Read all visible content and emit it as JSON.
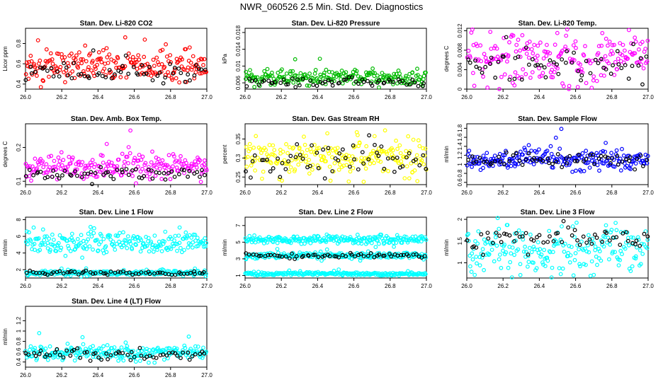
{
  "title": "NWR_060526  2.5 Min. Std. Dev. Diagnostics",
  "chart_data": [
    {
      "type": "scatter",
      "title": "Stan. Dev. Li-820 CO2",
      "ylabel": "Licor ppm",
      "xlim": [
        26.0,
        27.0
      ],
      "ylim": [
        0.35,
        0.95
      ],
      "xticks": [
        "26.0",
        "26.2",
        "26.4",
        "26.6",
        "26.8",
        "27.0"
      ],
      "yticks": [
        0.4,
        0.6,
        0.8
      ],
      "series": [
        {
          "color": "#ff0000",
          "center": 0.58,
          "spread": 0.08
        },
        {
          "color": "#000000",
          "center": 0.52,
          "spread": 0.05
        }
      ]
    },
    {
      "type": "scatter",
      "title": "Stan. Dev. Li-820 Pressure",
      "ylabel": "kPa",
      "xlim": [
        26.0,
        27.0
      ],
      "ylim": [
        0.0045,
        0.019
      ],
      "xticks": [
        "26.0",
        "26.2",
        "26.4",
        "26.6",
        "26.8",
        "27.0"
      ],
      "yticks": [
        0.006,
        0.01,
        0.014,
        0.018
      ],
      "series": [
        {
          "color": "#00bb00",
          "center": 0.0072,
          "spread": 0.0009
        },
        {
          "color": "#000000",
          "center": 0.0062,
          "spread": 0.0005
        }
      ]
    },
    {
      "type": "scatter",
      "title": "Stan. Dev. Li-820 Temp.",
      "ylabel": "degrees C",
      "xlim": [
        26.0,
        27.0
      ],
      "ylim": [
        0,
        0.0125
      ],
      "xticks": [
        "26.0",
        "26.2",
        "26.4",
        "26.6",
        "26.8",
        "27.0"
      ],
      "yticks": [
        0.0,
        0.004,
        0.008,
        0.012
      ],
      "series": [
        {
          "color": "#ff00ff",
          "center": 0.006,
          "spread": 0.003
        },
        {
          "color": "#000000",
          "center": 0.005,
          "spread": 0.002
        }
      ]
    },
    {
      "type": "scatter",
      "title": "Stan. Dev. Amb. Box Temp.",
      "ylabel": "degrees C",
      "xlim": [
        26.0,
        27.0
      ],
      "ylim": [
        0.09,
        0.27
      ],
      "xticks": [
        "26.0",
        "26.2",
        "26.4",
        "26.6",
        "26.8",
        "27.0"
      ],
      "yticks": [
        0.1,
        0.2
      ],
      "series": [
        {
          "color": "#ff00ff",
          "center": 0.14,
          "spread": 0.02
        },
        {
          "color": "#000000",
          "center": 0.125,
          "spread": 0.01
        }
      ]
    },
    {
      "type": "scatter",
      "title": "Stan. Dev. Gas Stream RH",
      "ylabel": "percent",
      "xlim": [
        26.0,
        27.0
      ],
      "ylim": [
        0.23,
        0.39
      ],
      "xticks": [
        "26.0",
        "26.2",
        "26.4",
        "26.6",
        "26.8",
        "27.0"
      ],
      "yticks": [
        0.25,
        0.3,
        0.35
      ],
      "series": [
        {
          "color": "#ffff00",
          "center": 0.3,
          "spread": 0.025
        },
        {
          "color": "#000000",
          "center": 0.295,
          "spread": 0.02
        }
      ]
    },
    {
      "type": "scatter",
      "title": "Stan. Dev. Sample Flow",
      "ylabel": "ml/min",
      "xlim": [
        26.0,
        27.0
      ],
      "ylim": [
        0.55,
        1.9
      ],
      "xticks": [
        "26.0",
        "26.2",
        "26.4",
        "26.6",
        "26.8",
        "27.0"
      ],
      "yticks": [
        0.6,
        0.8,
        1.0,
        1.2,
        1.4,
        1.6,
        1.8
      ],
      "series": [
        {
          "color": "#0000ff",
          "center": 1.1,
          "spread": 0.12
        },
        {
          "color": "#000000",
          "center": 1.1,
          "spread": 0.08
        }
      ]
    },
    {
      "type": "scatter",
      "title": "Stan. Dev. Line 1 Flow",
      "ylabel": "ml/min",
      "xlim": [
        26.0,
        27.0
      ],
      "ylim": [
        1.0,
        8.3
      ],
      "xticks": [
        "26.0",
        "26.2",
        "26.4",
        "26.6",
        "26.8",
        "27.0"
      ],
      "yticks": [
        2,
        4,
        6,
        8
      ],
      "series": [
        {
          "color": "#00ffff",
          "center": 5.3,
          "spread": 0.7
        },
        {
          "color": "#00ffff",
          "center": 1.6,
          "spread": 0.15
        },
        {
          "color": "#000000",
          "center": 1.6,
          "spread": 0.12
        }
      ]
    },
    {
      "type": "scatter",
      "title": "Stan. Dev. Line 2 Flow",
      "ylabel": "ml/min",
      "xlim": [
        26.0,
        27.0
      ],
      "ylim": [
        0.7,
        8.0
      ],
      "xticks": [
        "26.0",
        "26.2",
        "26.4",
        "26.6",
        "26.8",
        "27.0"
      ],
      "yticks": [
        1,
        3,
        5,
        7
      ],
      "series": [
        {
          "color": "#00ffff",
          "center": 5.3,
          "spread": 0.25
        },
        {
          "color": "#00ffff",
          "center": 3.4,
          "spread": 0.2
        },
        {
          "color": "#00ffff",
          "center": 1.2,
          "spread": 0.1
        },
        {
          "color": "#000000",
          "center": 3.4,
          "spread": 0.15
        }
      ]
    },
    {
      "type": "scatter",
      "title": "Stan. Dev. Line 3 Flow",
      "ylabel": "ml/min",
      "xlim": [
        26.0,
        27.0
      ],
      "ylim": [
        0.65,
        2.05
      ],
      "xticks": [
        "26.0",
        "26.2",
        "26.4",
        "26.6",
        "26.8",
        "27.0"
      ],
      "yticks": [
        1.0,
        1.5,
        2.0
      ],
      "series": [
        {
          "color": "#00ffff",
          "center": 1.35,
          "spread": 0.3
        },
        {
          "color": "#000000",
          "center": 1.55,
          "spread": 0.15
        }
      ]
    },
    {
      "type": "scatter",
      "title": "Stan. Dev. Line 4 (LT) Flow",
      "ylabel": "ml/min",
      "xlim": [
        26.0,
        27.0
      ],
      "ylim": [
        0.3,
        1.48
      ],
      "xticks": [
        "26.0",
        "26.2",
        "26.4",
        "26.6",
        "26.8",
        "27.0"
      ],
      "yticks": [
        0.4,
        0.6,
        0.8,
        1.0,
        1.2
      ],
      "series": [
        {
          "color": "#00ffff",
          "center": 0.58,
          "spread": 0.07
        },
        {
          "color": "#000000",
          "center": 0.55,
          "spread": 0.05
        }
      ]
    }
  ]
}
